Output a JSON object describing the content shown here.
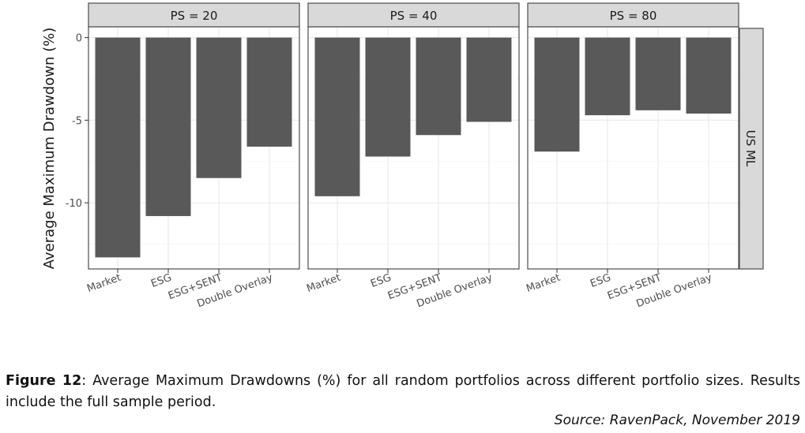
{
  "chart_data": {
    "type": "bar",
    "ylabel": "Average Maximum Drawdown (%)",
    "row_strip": "US ML",
    "categories": [
      "Market",
      "ESG",
      "ESG+SENT",
      "Double Overlay"
    ],
    "y_ticks": [
      0,
      -5,
      -10
    ],
    "y_tick_labels": [
      "0",
      "-5",
      "-10"
    ],
    "ylim": [
      -14.0,
      0.65
    ],
    "grid": true,
    "panels": [
      {
        "strip": "PS = 20",
        "values": [
          -13.3,
          -10.8,
          -8.5,
          -6.6
        ]
      },
      {
        "strip": "PS = 40",
        "values": [
          -9.6,
          -7.2,
          -5.9,
          -5.1
        ]
      },
      {
        "strip": "PS = 80",
        "values": [
          -6.9,
          -4.7,
          -4.4,
          -4.6
        ]
      }
    ],
    "colors": {
      "bar": "#595959",
      "strip_fill": "#d9d9d9",
      "strip_border": "#4d4d4d",
      "panel_border": "#4d4d4d",
      "grid": "#ebebeb",
      "text": "#4d4d4d"
    }
  },
  "caption": {
    "label": "Figure 12",
    "text": ": Average Maximum Drawdowns (%) for all random portfolios across different portfolio sizes. Results include the full sample period."
  },
  "source": "Source: RavenPack, November 2019"
}
